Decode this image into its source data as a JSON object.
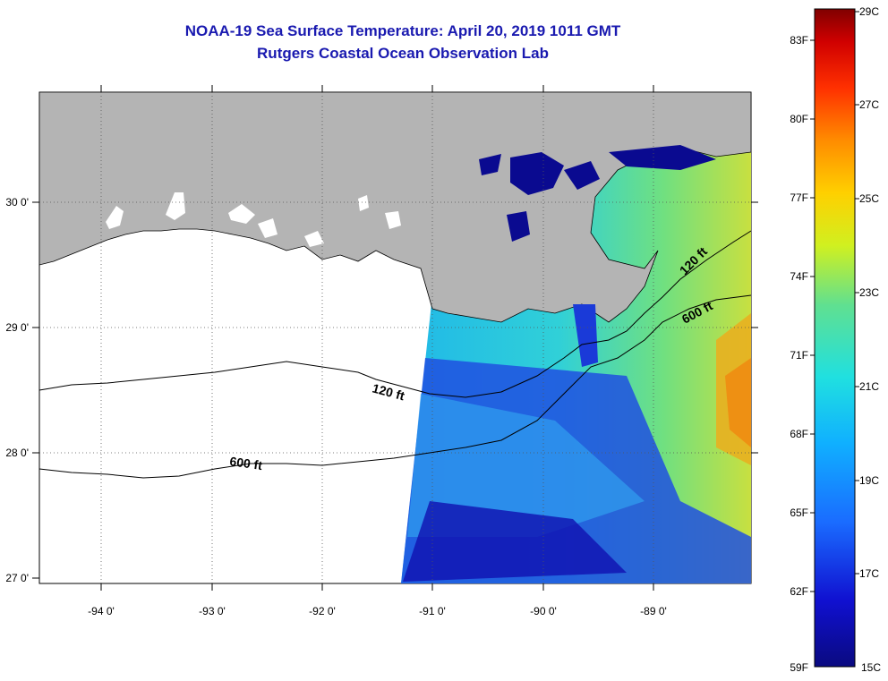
{
  "title_line1": "NOAA-19 Sea Surface Temperature:  April 20, 2019 1011 GMT",
  "title_line2": "Rutgers Coastal Ocean Observation Lab",
  "map": {
    "lon_labels": [
      "-94 0'",
      "-93 0'",
      "-92 0'",
      "-91 0'",
      "-90 0'",
      "-89 0'"
    ],
    "lat_labels": [
      "30 0'",
      "29 0'",
      "28 0'",
      "27 0'"
    ],
    "contour_labels": [
      {
        "text": "120 ft",
        "name": "contour-label-120ft-west"
      },
      {
        "text": "600 ft",
        "name": "contour-label-600ft-west"
      },
      {
        "text": "120 ft",
        "name": "contour-label-120ft-east"
      },
      {
        "text": "600 ft",
        "name": "contour-label-600ft-east"
      }
    ]
  },
  "colorbar": {
    "fahrenheit_labels": [
      "83F",
      "80F",
      "77F",
      "74F",
      "71F",
      "68F",
      "65F",
      "62F",
      "59F"
    ],
    "celsius_labels": [
      "29C",
      "27C",
      "25C",
      "23C",
      "21C",
      "19C",
      "17C",
      "15C"
    ],
    "range_c": [
      15,
      29
    ]
  },
  "colors": {
    "title": "#1a1ab0",
    "land": "#b4b4b4",
    "cold": "#0a0a90",
    "warm": "#8b0000"
  }
}
